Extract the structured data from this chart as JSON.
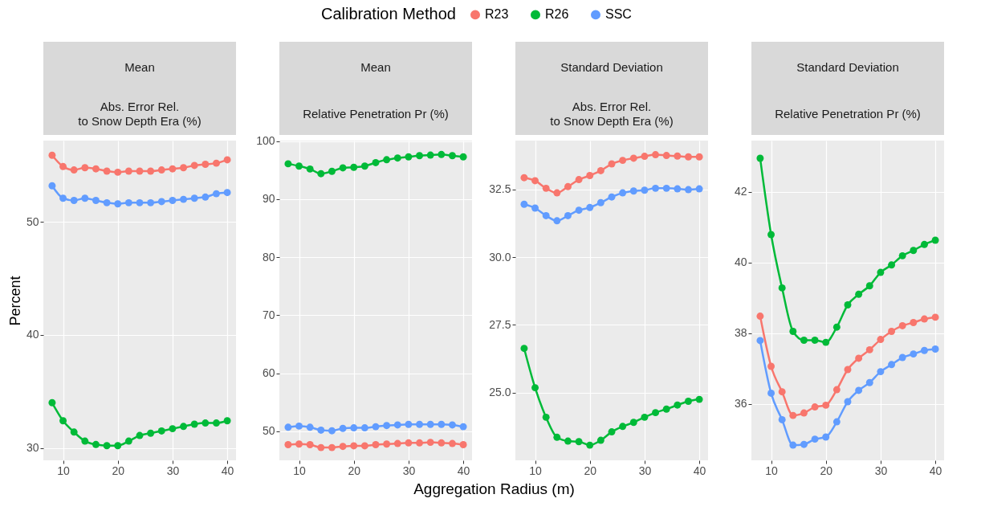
{
  "chart_data": [
    {
      "type": "line",
      "title": "Mean",
      "subtitle": "Abs. Error Rel.\nto Snow Depth Era (%)",
      "ylabel": "Percent",
      "legend_title": "Calibration Method",
      "legend": "top",
      "marker": "circle",
      "grid": true,
      "x": [
        8,
        10,
        12,
        14,
        16,
        18,
        20,
        22,
        24,
        26,
        28,
        30,
        32,
        34,
        36,
        38,
        40
      ],
      "series": [
        {
          "name": "R23",
          "color": "#f8766d",
          "values": [
            55.9,
            54.9,
            54.6,
            54.8,
            54.7,
            54.5,
            54.4,
            54.5,
            54.5,
            54.5,
            54.6,
            54.7,
            54.8,
            55.0,
            55.1,
            55.2,
            55.5
          ]
        },
        {
          "name": "R26",
          "color": "#00ba38",
          "values": [
            34.0,
            32.4,
            31.4,
            30.6,
            30.3,
            30.2,
            30.2,
            30.6,
            31.1,
            31.3,
            31.5,
            31.7,
            31.9,
            32.1,
            32.2,
            32.2,
            32.4
          ]
        },
        {
          "name": "SSC",
          "color": "#619cff",
          "values": [
            53.2,
            52.1,
            51.9,
            52.1,
            51.9,
            51.7,
            51.6,
            51.7,
            51.7,
            51.7,
            51.8,
            51.9,
            52.0,
            52.1,
            52.2,
            52.5,
            52.6
          ]
        }
      ],
      "xlim": [
        6.4,
        41.6
      ],
      "xticks": [
        10,
        20,
        30,
        40
      ],
      "ylim": [
        28.9,
        57.2
      ],
      "yticks": [
        30,
        40,
        50
      ]
    },
    {
      "type": "line",
      "title": "Mean",
      "subtitle": "Relative Penetration Pr (%)",
      "xlabel": "Aggregation Radius (m)",
      "legend": "top",
      "marker": "circle",
      "grid": true,
      "x": [
        8,
        10,
        12,
        14,
        16,
        18,
        20,
        22,
        24,
        26,
        28,
        30,
        32,
        34,
        36,
        38,
        40
      ],
      "series": [
        {
          "name": "R23",
          "color": "#f8766d",
          "values": [
            47.7,
            47.8,
            47.7,
            47.2,
            47.2,
            47.4,
            47.5,
            47.5,
            47.7,
            47.8,
            47.9,
            48.0,
            48.0,
            48.1,
            48.0,
            47.9,
            47.7
          ]
        },
        {
          "name": "R26",
          "color": "#00ba38",
          "values": [
            96.1,
            95.7,
            95.2,
            94.4,
            94.8,
            95.4,
            95.5,
            95.7,
            96.3,
            96.8,
            97.1,
            97.3,
            97.5,
            97.6,
            97.7,
            97.5,
            97.3
          ]
        },
        {
          "name": "SSC",
          "color": "#619cff",
          "values": [
            50.7,
            50.9,
            50.7,
            50.2,
            50.1,
            50.5,
            50.6,
            50.6,
            50.8,
            51.0,
            51.1,
            51.2,
            51.2,
            51.2,
            51.2,
            51.1,
            50.8
          ]
        }
      ],
      "xlim": [
        6.4,
        41.6
      ],
      "xticks": [
        10,
        20,
        30,
        40
      ],
      "ylim": [
        45,
        100.1
      ],
      "yticks": [
        50,
        60,
        70,
        80,
        90,
        100
      ]
    },
    {
      "type": "line",
      "title": "Standard Deviation",
      "subtitle": "Abs. Error Rel.\nto Snow Depth Era (%)",
      "legend": "top",
      "marker": "circle",
      "grid": true,
      "x": [
        8,
        10,
        12,
        14,
        16,
        18,
        20,
        22,
        24,
        26,
        28,
        30,
        32,
        34,
        36,
        38,
        40
      ],
      "series": [
        {
          "name": "R23",
          "color": "#f8766d",
          "values": [
            32.93,
            32.82,
            32.54,
            32.37,
            32.6,
            32.86,
            33.01,
            33.19,
            33.44,
            33.57,
            33.65,
            33.72,
            33.78,
            33.75,
            33.73,
            33.7,
            33.7
          ]
        },
        {
          "name": "R26",
          "color": "#00ba38",
          "values": [
            26.63,
            25.18,
            24.09,
            23.35,
            23.21,
            23.19,
            23.06,
            23.24,
            23.55,
            23.75,
            23.9,
            24.09,
            24.26,
            24.39,
            24.54,
            24.68,
            24.75
          ]
        },
        {
          "name": "SSC",
          "color": "#619cff",
          "values": [
            31.95,
            31.81,
            31.53,
            31.34,
            31.53,
            31.73,
            31.83,
            32.01,
            32.22,
            32.37,
            32.44,
            32.47,
            32.54,
            32.54,
            32.52,
            32.49,
            32.52
          ]
        }
      ],
      "xlim": [
        6.4,
        41.6
      ],
      "xticks": [
        10,
        20,
        30,
        40
      ],
      "ylim": [
        22.5,
        34.3
      ],
      "yticks": [
        {
          "value": 25,
          "label": "25.0"
        },
        {
          "value": 27.5,
          "label": "27.5"
        },
        {
          "value": 30,
          "label": "30.0"
        },
        {
          "value": 32.5,
          "label": "32.5"
        }
      ]
    },
    {
      "type": "line",
      "title": "Standard Deviation",
      "subtitle": "Relative Penetration Pr (%)",
      "legend": "top",
      "marker": "circle",
      "grid": true,
      "x": [
        8,
        10,
        12,
        14,
        16,
        18,
        20,
        22,
        24,
        26,
        28,
        30,
        32,
        34,
        36,
        38,
        40
      ],
      "series": [
        {
          "name": "R23",
          "color": "#f8766d",
          "values": [
            38.48,
            37.06,
            36.34,
            35.67,
            35.74,
            35.91,
            35.96,
            36.4,
            36.97,
            37.29,
            37.53,
            37.82,
            38.05,
            38.21,
            38.3,
            38.4,
            38.45
          ]
        },
        {
          "name": "R26",
          "color": "#00ba38",
          "values": [
            42.95,
            40.79,
            39.28,
            38.05,
            37.8,
            37.8,
            37.74,
            38.17,
            38.8,
            39.1,
            39.34,
            39.72,
            39.93,
            40.19,
            40.34,
            40.51,
            40.63
          ]
        },
        {
          "name": "SSC",
          "color": "#619cff",
          "values": [
            37.79,
            36.3,
            35.55,
            34.83,
            34.85,
            35.0,
            35.06,
            35.49,
            36.06,
            36.38,
            36.6,
            36.91,
            37.11,
            37.31,
            37.41,
            37.51,
            37.55
          ]
        }
      ],
      "xlim": [
        6.4,
        41.6
      ],
      "xticks": [
        10,
        20,
        30,
        40
      ],
      "ylim": [
        34.4,
        43.45
      ],
      "yticks": [
        36,
        38,
        40,
        42
      ]
    }
  ]
}
